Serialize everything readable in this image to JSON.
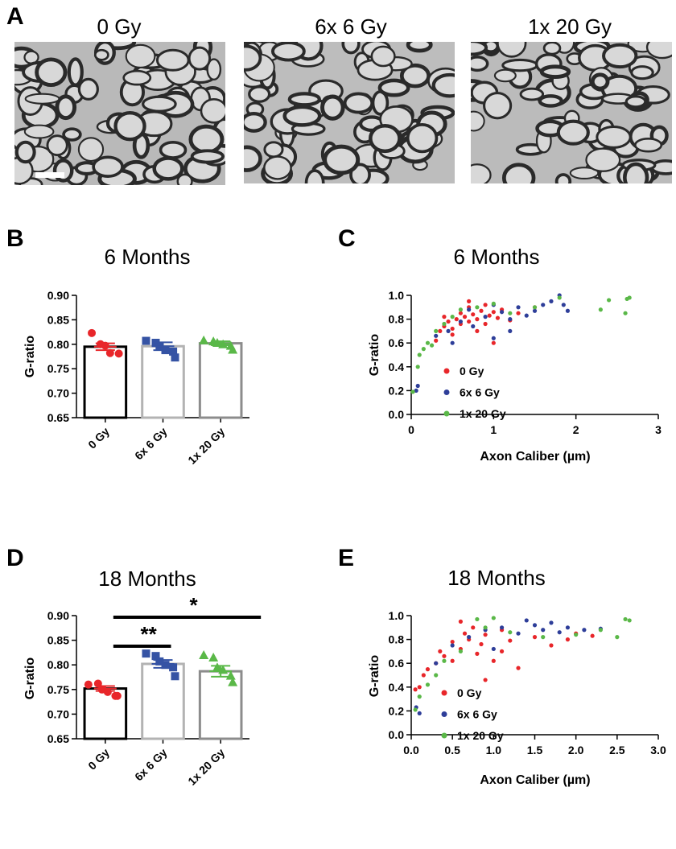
{
  "panel_labels": [
    "A",
    "B",
    "C",
    "D",
    "E"
  ],
  "panel_a": {
    "image_titles": [
      "0 Gy",
      "6x 6 Gy",
      "1x 20 Gy"
    ]
  },
  "chart_data": [
    {
      "type": "bar",
      "title": "6 Months",
      "y_label": "G-ratio",
      "categories": [
        "0 Gy",
        "6x 6 Gy",
        "1x 20 Gy"
      ],
      "values": [
        0.795,
        0.796,
        0.802
      ],
      "errors": [
        0.007,
        0.008,
        0.004
      ],
      "bar_colors": [
        "#000000",
        "#b3b3b3",
        "#8c8c8c"
      ],
      "point_colors": [
        "#e8262a",
        "#3553a4",
        "#5ab848"
      ],
      "markers": [
        "circle",
        "square",
        "triangle"
      ],
      "points": [
        [
          0.823,
          0.8,
          0.797,
          0.782,
          0.781
        ],
        [
          0.807,
          0.803,
          0.797,
          0.788,
          0.785,
          0.773
        ],
        [
          0.808,
          0.806,
          0.803,
          0.8,
          0.797,
          0.789
        ]
      ],
      "ylim": [
        0.65,
        0.9
      ],
      "yticks": [
        0.65,
        {
          "value": 0.7,
          "label": "0.70"
        },
        0.75,
        {
          "value": 0.8,
          "label": "0.80"
        },
        0.85,
        {
          "value": 0.9,
          "label": "0.90"
        }
      ],
      "grid": false
    },
    {
      "type": "scatter",
      "title": "6 Months",
      "x_label": "Axon Caliber (µm)",
      "y_label": "G-ratio",
      "series": [
        {
          "name": "0 Gy",
          "color": "#e8262a",
          "x": [
            0.3,
            0.35,
            0.4,
            0.45,
            0.5,
            0.55,
            0.6,
            0.6,
            0.65,
            0.7,
            0.7,
            0.75,
            0.8,
            0.85,
            0.9,
            0.9,
            0.95,
            1.0,
            1.05,
            1.1,
            1.2,
            1.3,
            1.5,
            0.5,
            0.8,
            0.7,
            1.0,
            0.4
          ],
          "values": [
            0.62,
            0.7,
            0.74,
            0.78,
            0.72,
            0.8,
            0.76,
            0.85,
            0.82,
            0.78,
            0.9,
            0.84,
            0.8,
            0.87,
            0.76,
            0.92,
            0.83,
            0.86,
            0.81,
            0.88,
            0.79,
            0.85,
            0.9,
            0.67,
            0.7,
            0.95,
            0.6,
            0.82
          ]
        },
        {
          "name": "6x 6 Gy",
          "color": "#2e3e99",
          "x": [
            0.06,
            0.08,
            0.3,
            0.45,
            0.6,
            0.75,
            0.9,
            1.0,
            1.1,
            1.2,
            1.3,
            1.4,
            1.5,
            1.6,
            1.7,
            1.8,
            1.85,
            1.9,
            0.5,
            0.7,
            1.0,
            1.2
          ],
          "values": [
            0.2,
            0.24,
            0.66,
            0.7,
            0.78,
            0.74,
            0.82,
            0.64,
            0.86,
            0.8,
            0.9,
            0.83,
            0.87,
            0.92,
            0.95,
            1.0,
            0.92,
            0.87,
            0.6,
            0.88,
            0.92,
            0.7
          ]
        },
        {
          "name": "1x 20 Gy",
          "color": "#5ab848",
          "x": [
            0.02,
            0.08,
            0.1,
            0.15,
            0.2,
            0.25,
            0.3,
            0.4,
            0.5,
            0.6,
            0.8,
            1.0,
            1.2,
            1.5,
            1.8,
            2.3,
            2.4,
            2.6,
            2.62,
            2.65
          ],
          "values": [
            0.19,
            0.4,
            0.5,
            0.55,
            0.6,
            0.58,
            0.7,
            0.76,
            0.82,
            0.88,
            0.9,
            0.93,
            0.85,
            0.9,
            0.98,
            0.88,
            0.96,
            0.85,
            0.97,
            0.98
          ]
        }
      ],
      "xlim": [
        0,
        3
      ],
      "xticks": [
        0,
        1,
        2,
        3
      ],
      "ylim": [
        0,
        1
      ],
      "yticks": [
        {
          "value": 0,
          "label": "0.0"
        },
        0.2,
        0.4,
        0.6,
        0.8,
        {
          "value": 1,
          "label": "1.0"
        }
      ],
      "legend": "right",
      "grid": false
    },
    {
      "type": "bar",
      "title": "18 Months",
      "y_label": "G-ratio",
      "categories": [
        "0 Gy",
        "6x 6 Gy",
        "1x 20 Gy"
      ],
      "values": [
        0.752,
        0.802,
        0.787
      ],
      "errors": [
        0.005,
        0.008,
        0.011
      ],
      "bar_colors": [
        "#000000",
        "#b3b3b3",
        "#8c8c8c"
      ],
      "point_colors": [
        "#e8262a",
        "#3553a4",
        "#5ab848"
      ],
      "markers": [
        "circle",
        "square",
        "triangle"
      ],
      "points": [
        [
          0.76,
          0.762,
          0.75,
          0.745,
          0.737,
          0.737
        ],
        [
          0.823,
          0.818,
          0.807,
          0.8,
          0.795,
          0.777
        ],
        [
          0.82,
          0.815,
          0.795,
          0.79,
          0.778,
          0.765
        ]
      ],
      "annotations": [
        {
          "text": "**",
          "between": [
            "0 Gy",
            "6x 6 Gy"
          ]
        },
        {
          "text": "*",
          "between": [
            "0 Gy",
            "1x 20 Gy"
          ]
        }
      ],
      "ylim": [
        0.65,
        0.9
      ],
      "yticks": [
        0.65,
        {
          "value": 0.7,
          "label": "0.70"
        },
        0.75,
        {
          "value": 0.8,
          "label": "0.80"
        },
        0.85,
        {
          "value": 0.9,
          "label": "0.90"
        }
      ],
      "grid": false
    },
    {
      "type": "scatter",
      "title": "18 Months",
      "x_label": "Axon Caliber (µm)",
      "y_label": "G-ratio",
      "series": [
        {
          "name": "0 Gy",
          "color": "#e8262a",
          "x": [
            0.05,
            0.1,
            0.15,
            0.2,
            0.3,
            0.35,
            0.4,
            0.5,
            0.5,
            0.6,
            0.65,
            0.7,
            0.75,
            0.8,
            0.85,
            0.9,
            1.0,
            1.1,
            1.2,
            1.3,
            1.5,
            1.7,
            1.9,
            2.0,
            2.2,
            0.6,
            0.9,
            1.1
          ],
          "values": [
            0.38,
            0.4,
            0.5,
            0.55,
            0.6,
            0.7,
            0.66,
            0.62,
            0.78,
            0.72,
            0.85,
            0.8,
            0.9,
            0.68,
            0.76,
            0.84,
            0.62,
            0.88,
            0.79,
            0.56,
            0.82,
            0.75,
            0.8,
            0.85,
            0.83,
            0.95,
            0.46,
            0.7
          ]
        },
        {
          "name": "6x 6 Gy",
          "color": "#2e3e99",
          "x": [
            0.06,
            0.1,
            0.3,
            0.5,
            0.7,
            0.9,
            1.1,
            1.3,
            1.5,
            1.6,
            1.7,
            1.8,
            1.9,
            2.1,
            2.3,
            1.0,
            1.4
          ],
          "values": [
            0.23,
            0.18,
            0.6,
            0.75,
            0.82,
            0.88,
            0.9,
            0.85,
            0.92,
            0.88,
            0.94,
            0.86,
            0.9,
            0.88,
            0.89,
            0.72,
            0.96
          ]
        },
        {
          "name": "1x 20 Gy",
          "color": "#5ab848",
          "x": [
            0.05,
            0.1,
            0.2,
            0.3,
            0.4,
            0.6,
            0.8,
            0.9,
            1.0,
            1.2,
            1.6,
            2.0,
            2.3,
            2.5,
            2.6,
            2.65
          ],
          "values": [
            0.21,
            0.32,
            0.42,
            0.5,
            0.62,
            0.7,
            0.97,
            0.9,
            0.98,
            0.86,
            0.82,
            0.84,
            0.88,
            0.82,
            0.97,
            0.96
          ]
        }
      ],
      "xlim": [
        0,
        3
      ],
      "xticks": [
        {
          "value": 0,
          "label": "0.0"
        },
        0.5,
        {
          "value": 1,
          "label": "1.0"
        },
        1.5,
        {
          "value": 2,
          "label": "2.0"
        },
        2.5,
        {
          "value": 3,
          "label": "3.0"
        }
      ],
      "ylim": [
        0,
        1
      ],
      "yticks": [
        {
          "value": 0,
          "label": "0.0"
        },
        0.2,
        0.4,
        0.6,
        0.8,
        {
          "value": 1,
          "label": "1.0"
        }
      ],
      "legend": "right",
      "grid": false
    }
  ]
}
